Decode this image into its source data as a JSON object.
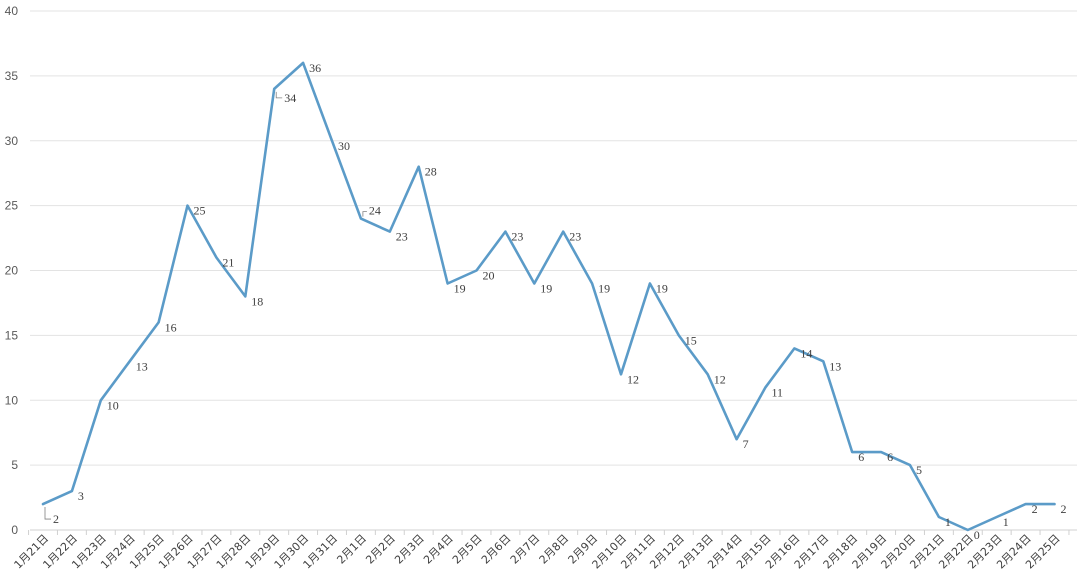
{
  "chart_data": {
    "type": "line",
    "title": "",
    "xlabel": "",
    "ylabel": "",
    "ylim": [
      0,
      40
    ],
    "yticks": [
      "0",
      "5",
      "10",
      "15",
      "20",
      "25",
      "30",
      "35",
      "40"
    ],
    "grid": true,
    "legend": "none",
    "line_color": "#5b9bc8",
    "categories": [
      "1月21日",
      "1月22日",
      "1月23日",
      "1月24日",
      "1月25日",
      "1月26日",
      "1月27日",
      "1月28日",
      "1月29日",
      "1月30日",
      "1月31日",
      "2月1日",
      "2月2日",
      "2月3日",
      "2月4日",
      "2月5日",
      "2月6日",
      "2月7日",
      "2月8日",
      "2月9日",
      "2月10日",
      "2月11日",
      "2月12日",
      "2月13日",
      "2月14日",
      "2月15日",
      "2月16日",
      "2月17日",
      "2月18日",
      "2月19日",
      "2月20日",
      "2月21日",
      "2月22日",
      "2月23日",
      "2月24日",
      "2月25日"
    ],
    "values": [
      2,
      3,
      10,
      13,
      16,
      25,
      21,
      18,
      34,
      36,
      30,
      24,
      23,
      28,
      19,
      20,
      23,
      19,
      23,
      19,
      12,
      19,
      15,
      12,
      7,
      11,
      14,
      13,
      6,
      6,
      5,
      1,
      0,
      1,
      2,
      2
    ],
    "data_labels": [
      "2",
      "3",
      "10",
      "13",
      "16",
      "25",
      "21",
      "18",
      "34",
      "36",
      "30",
      "24",
      "23",
      "28",
      "19",
      "20",
      "23",
      "19",
      "23",
      "19",
      "12",
      "19",
      "15",
      "12",
      "7",
      "11",
      "14",
      "13",
      "6",
      "6",
      "5",
      "1",
      "0",
      "1",
      "2",
      "2"
    ]
  }
}
